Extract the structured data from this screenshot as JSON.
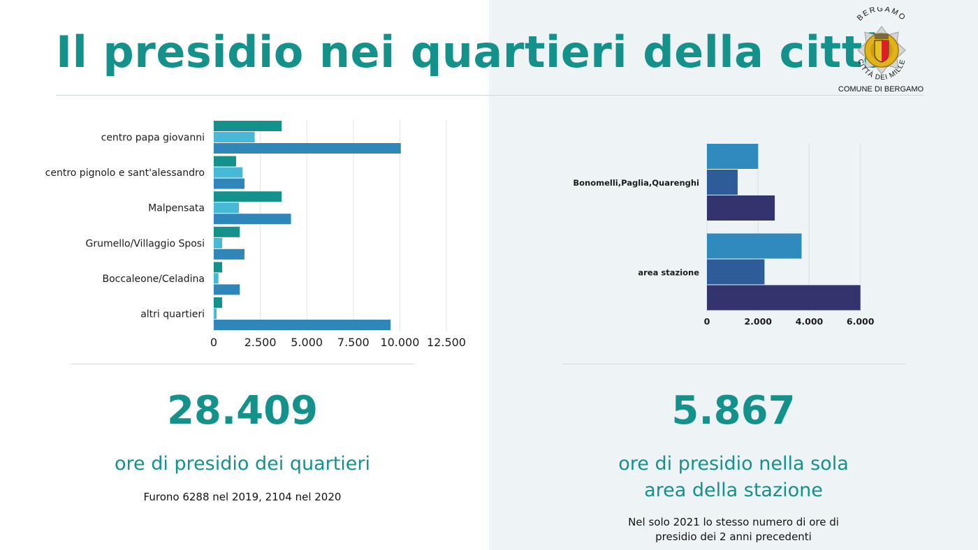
{
  "title": "Il presidio nei quartieri della città",
  "logo": {
    "arc_text": "BERGAMO",
    "motto": "CITTÀ DEI MILLE",
    "caption": "COMUNE DI BERGAMO"
  },
  "colors": {
    "teal": "#14918a",
    "series_a": "#14918a",
    "series_b": "#47b8d6",
    "series_c": "#2f86b8",
    "right_a": "#2f8bbd",
    "right_b": "#2d5c98",
    "right_c": "#33336e",
    "right_panel_bg": "#eef4f5"
  },
  "left_stat": {
    "value": "28.409",
    "label": "ore di presidio dei quartieri",
    "note": "Furono 6288 nel 2019, 2104 nel 2020"
  },
  "right_stat": {
    "value": "5.867",
    "label_line1": "ore di presidio nella sola",
    "label_line2": "area della stazione",
    "note_line1": "Nel solo 2021 lo stesso numero di ore di",
    "note_line2": "presidio dei 2 anni precedenti"
  },
  "chart_data": [
    {
      "type": "bar",
      "orientation": "horizontal",
      "categories": [
        "centro papa giovanni",
        "centro pignolo e sant'alessandro",
        "Malpensata",
        "Grumello/Villaggio Sposi",
        "Boccaleone/Celadina",
        "altri quartieri"
      ],
      "series": [
        {
          "values": [
            3650,
            1200,
            3650,
            1400,
            450,
            450
          ],
          "color": "#14918a"
        },
        {
          "values": [
            2200,
            1550,
            1350,
            450,
            250,
            150
          ],
          "color": "#47b8d6"
        },
        {
          "values": [
            10050,
            1650,
            4150,
            1650,
            1400,
            9500
          ],
          "color": "#2f86b8"
        }
      ],
      "xlim": [
        0,
        12500
      ],
      "xticks": [
        "0",
        "2.500",
        "5.000",
        "7.500",
        "10.000",
        "12.500"
      ],
      "xtick_values": [
        0,
        2500,
        5000,
        7500,
        10000,
        12500
      ],
      "grid": "vertical"
    },
    {
      "type": "bar",
      "orientation": "horizontal",
      "categories": [
        "Bonomelli,Paglia,Quarenghi",
        "area stazione"
      ],
      "series": [
        {
          "values": [
            2000,
            3700
          ],
          "color": "#2f8bbd"
        },
        {
          "values": [
            1200,
            2250
          ],
          "color": "#2d5c98"
        },
        {
          "values": [
            2650,
            6000
          ],
          "color": "#33336e"
        }
      ],
      "xlim": [
        0,
        6500
      ],
      "xticks": [
        "0",
        "2.000",
        "4.000",
        "6.000"
      ],
      "xtick_values": [
        0,
        2000,
        4000,
        6000
      ],
      "grid": "vertical"
    }
  ]
}
